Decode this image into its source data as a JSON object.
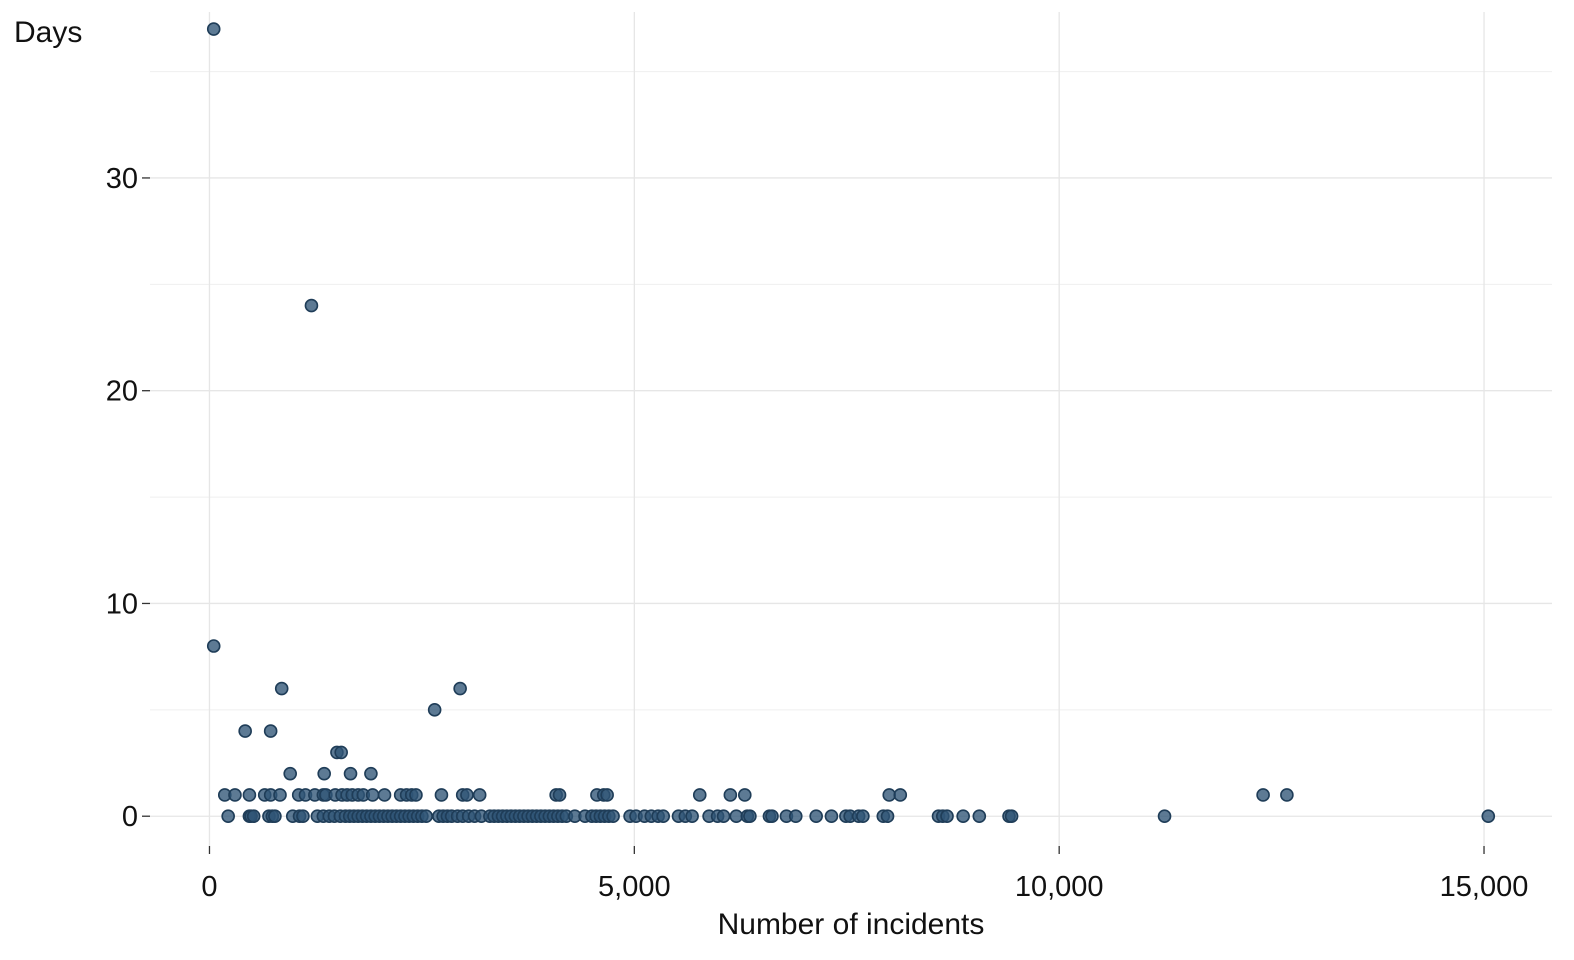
{
  "chart_data": {
    "type": "scatter",
    "title": "",
    "xlabel": "Number of incidents",
    "ylabel": "Days",
    "xlim": [
      -700,
      15800
    ],
    "ylim": [
      -1.4,
      37.8
    ],
    "x_ticks": [
      0,
      5000,
      10000,
      15000
    ],
    "x_tick_labels": [
      "0",
      "5,000",
      "10,000",
      "15,000"
    ],
    "y_ticks": [
      0,
      10,
      20,
      30
    ],
    "y_tick_labels": [
      "0",
      "10",
      "20",
      "30"
    ],
    "x_minor_grid": [],
    "y_minor_grid": [
      5,
      15,
      25,
      35
    ],
    "grid": true,
    "legend": "none",
    "point_fill": "#2f5576",
    "point_stroke": "#1f3d58",
    "point_opacity": 0.78,
    "points": [
      [
        50,
        37
      ],
      [
        1200,
        24
      ],
      [
        50,
        8
      ],
      [
        850,
        6
      ],
      [
        2950,
        6
      ],
      [
        2650,
        5
      ],
      [
        420,
        4
      ],
      [
        720,
        4
      ],
      [
        950,
        2
      ],
      [
        1350,
        2
      ],
      [
        1660,
        2
      ],
      [
        1900,
        2
      ],
      [
        1500,
        3
      ],
      [
        1550,
        3
      ],
      [
        180,
        1
      ],
      [
        300,
        1
      ],
      [
        470,
        1
      ],
      [
        650,
        1
      ],
      [
        720,
        1
      ],
      [
        830,
        1
      ],
      [
        1050,
        1
      ],
      [
        1130,
        1
      ],
      [
        1240,
        1
      ],
      [
        1340,
        1
      ],
      [
        1370,
        1
      ],
      [
        1480,
        1
      ],
      [
        1560,
        1
      ],
      [
        1620,
        1
      ],
      [
        1680,
        1
      ],
      [
        1750,
        1
      ],
      [
        1810,
        1
      ],
      [
        1920,
        1
      ],
      [
        2060,
        1
      ],
      [
        2250,
        1
      ],
      [
        2320,
        1
      ],
      [
        2380,
        1
      ],
      [
        2430,
        1
      ],
      [
        2730,
        1
      ],
      [
        2980,
        1
      ],
      [
        3030,
        1
      ],
      [
        3180,
        1
      ],
      [
        4080,
        1
      ],
      [
        4120,
        1
      ],
      [
        4560,
        1
      ],
      [
        4640,
        1
      ],
      [
        4680,
        1
      ],
      [
        5770,
        1
      ],
      [
        6130,
        1
      ],
      [
        6300,
        1
      ],
      [
        8000,
        1
      ],
      [
        8130,
        1
      ],
      [
        12400,
        1
      ],
      [
        12680,
        1
      ],
      [
        220,
        0
      ],
      [
        470,
        0
      ],
      [
        490,
        0
      ],
      [
        520,
        0
      ],
      [
        700,
        0
      ],
      [
        740,
        0
      ],
      [
        770,
        0
      ],
      [
        980,
        0
      ],
      [
        1060,
        0
      ],
      [
        1100,
        0
      ],
      [
        1270,
        0
      ],
      [
        1340,
        0
      ],
      [
        1410,
        0
      ],
      [
        1470,
        0
      ],
      [
        1540,
        0
      ],
      [
        1600,
        0
      ],
      [
        1650,
        0
      ],
      [
        1700,
        0
      ],
      [
        1750,
        0
      ],
      [
        1800,
        0
      ],
      [
        1850,
        0
      ],
      [
        1900,
        0
      ],
      [
        1950,
        0
      ],
      [
        2000,
        0
      ],
      [
        2050,
        0
      ],
      [
        2100,
        0
      ],
      [
        2150,
        0
      ],
      [
        2200,
        0
      ],
      [
        2250,
        0
      ],
      [
        2300,
        0
      ],
      [
        2350,
        0
      ],
      [
        2400,
        0
      ],
      [
        2450,
        0
      ],
      [
        2500,
        0
      ],
      [
        2550,
        0
      ],
      [
        2700,
        0
      ],
      [
        2750,
        0
      ],
      [
        2800,
        0
      ],
      [
        2850,
        0
      ],
      [
        2920,
        0
      ],
      [
        2980,
        0
      ],
      [
        3050,
        0
      ],
      [
        3120,
        0
      ],
      [
        3200,
        0
      ],
      [
        3300,
        0
      ],
      [
        3350,
        0
      ],
      [
        3400,
        0
      ],
      [
        3450,
        0
      ],
      [
        3500,
        0
      ],
      [
        3550,
        0
      ],
      [
        3600,
        0
      ],
      [
        3650,
        0
      ],
      [
        3700,
        0
      ],
      [
        3750,
        0
      ],
      [
        3800,
        0
      ],
      [
        3850,
        0
      ],
      [
        3900,
        0
      ],
      [
        3950,
        0
      ],
      [
        4000,
        0
      ],
      [
        4050,
        0
      ],
      [
        4100,
        0
      ],
      [
        4150,
        0
      ],
      [
        4200,
        0
      ],
      [
        4300,
        0
      ],
      [
        4420,
        0
      ],
      [
        4500,
        0
      ],
      [
        4550,
        0
      ],
      [
        4600,
        0
      ],
      [
        4650,
        0
      ],
      [
        4700,
        0
      ],
      [
        4750,
        0
      ],
      [
        4950,
        0
      ],
      [
        5020,
        0
      ],
      [
        5120,
        0
      ],
      [
        5200,
        0
      ],
      [
        5280,
        0
      ],
      [
        5340,
        0
      ],
      [
        5520,
        0
      ],
      [
        5600,
        0
      ],
      [
        5680,
        0
      ],
      [
        5880,
        0
      ],
      [
        5980,
        0
      ],
      [
        6050,
        0
      ],
      [
        6200,
        0
      ],
      [
        6330,
        0
      ],
      [
        6360,
        0
      ],
      [
        6590,
        0
      ],
      [
        6620,
        0
      ],
      [
        6790,
        0
      ],
      [
        6900,
        0
      ],
      [
        7140,
        0
      ],
      [
        7320,
        0
      ],
      [
        7490,
        0
      ],
      [
        7540,
        0
      ],
      [
        7640,
        0
      ],
      [
        7690,
        0
      ],
      [
        7930,
        0
      ],
      [
        7980,
        0
      ],
      [
        8580,
        0
      ],
      [
        8630,
        0
      ],
      [
        8680,
        0
      ],
      [
        8870,
        0
      ],
      [
        9060,
        0
      ],
      [
        9410,
        0
      ],
      [
        9440,
        0
      ],
      [
        11240,
        0
      ],
      [
        15050,
        0
      ]
    ]
  }
}
